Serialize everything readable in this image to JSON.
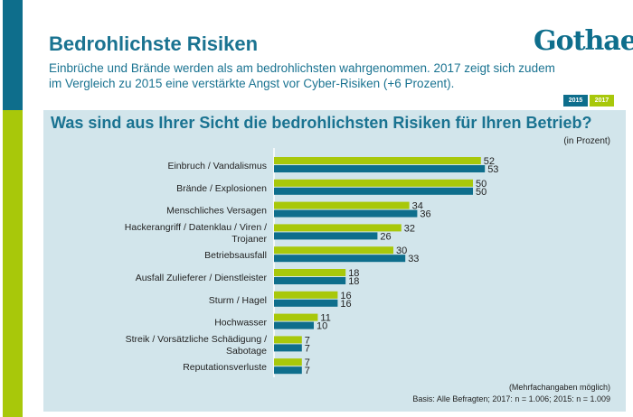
{
  "header": {
    "title": "Bedrohlichste Risiken",
    "subtitle": "Einbrüche und Brände werden als am bedrohlichsten wahrgenommen. 2017 zeigt sich zudem im Vergleich zu 2015 eine verstärkte Angst vor Cyber-Risiken (+6 Prozent).",
    "logo": "Gothaer"
  },
  "colors": {
    "s2017": "#a8c80a",
    "s2015": "#0e6e8c",
    "panel": "#d2e5eb"
  },
  "chart_data": {
    "type": "bar",
    "orientation": "horizontal",
    "title": "Was sind aus Ihrer Sicht die bedrohlichsten Risiken für Ihren Betrieb?",
    "unit": "(in Prozent)",
    "categories": [
      [
        "Einbruch / Vandalismus"
      ],
      [
        "Brände / Explosionen"
      ],
      [
        "Menschliches Versagen"
      ],
      [
        "Hackerangriff / Datenklau / Viren /",
        "Trojaner"
      ],
      [
        "Betriebsausfall"
      ],
      [
        "Ausfall Zulieferer / Dienstleister"
      ],
      [
        "Sturm / Hagel"
      ],
      [
        "Hochwasser"
      ],
      [
        "Streik / Vorsätzliche Schädigung /",
        "Sabotage"
      ],
      [
        "Reputationsverluste"
      ]
    ],
    "series": [
      {
        "name": "2017",
        "values": [
          52,
          50,
          34,
          32,
          30,
          18,
          16,
          11,
          7,
          7
        ]
      },
      {
        "name": "2015",
        "values": [
          53,
          50,
          36,
          26,
          33,
          18,
          16,
          10,
          7,
          7
        ]
      }
    ],
    "legend": "top-right",
    "notes": [
      "(Mehrfachangaben möglich)",
      "Basis: Alle Befragten; 2017: n = 1.006; 2015: n = 1.009"
    ]
  }
}
